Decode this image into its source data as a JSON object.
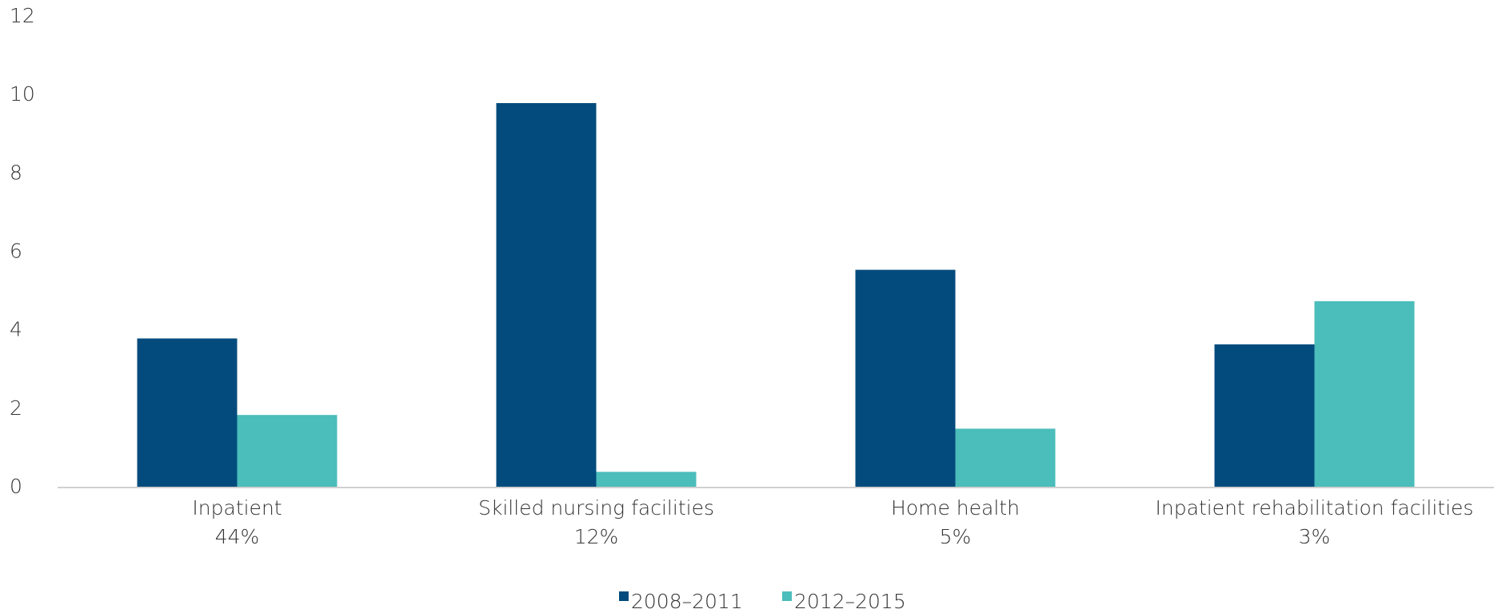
{
  "chart_data": {
    "type": "bar",
    "categories": [
      "Inpatient",
      "Skilled nursing facilities",
      "Home health",
      "Inpatient rehabilitation facilities"
    ],
    "category_sublabels": [
      "44%",
      "12%",
      "5%",
      "3%"
    ],
    "series": [
      {
        "name": "2008–2011",
        "color": "#034b7d",
        "values": [
          3.8,
          9.8,
          5.55,
          3.65
        ]
      },
      {
        "name": "2012–2015",
        "color": "#4bbdbb",
        "values": [
          1.85,
          0.4,
          1.5,
          4.75
        ]
      }
    ],
    "ylim": [
      0,
      12
    ],
    "yticks": [
      0,
      2,
      4,
      6,
      8,
      10,
      12
    ],
    "grid": false
  }
}
